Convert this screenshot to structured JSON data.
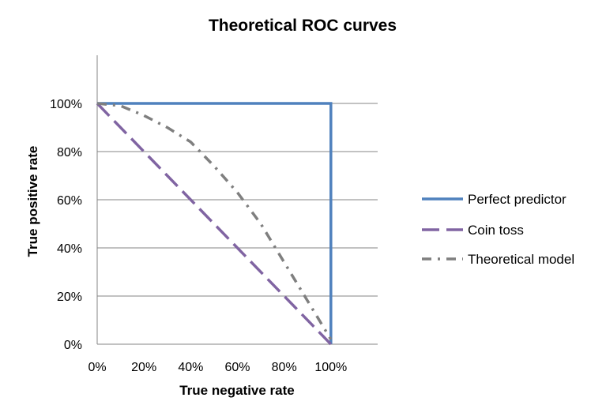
{
  "chart_data": {
    "type": "line",
    "title": "Theoretical ROC curves",
    "xlabel": "True negative rate",
    "ylabel": "True positive rate",
    "xlim": [
      0,
      1.2
    ],
    "ylim": [
      0,
      1.2
    ],
    "x_ticks": [
      0,
      0.2,
      0.4,
      0.6,
      0.8,
      1.0
    ],
    "x_tick_labels": [
      "0%",
      "20%",
      "40%",
      "60%",
      "80%",
      "100%"
    ],
    "y_ticks": [
      0,
      0.2,
      0.4,
      0.6,
      0.8,
      1.0
    ],
    "y_tick_labels": [
      "0%",
      "20%",
      "40%",
      "60%",
      "80%",
      "100%"
    ],
    "grid": "horizontal",
    "legend_position": "right",
    "series": [
      {
        "name": "Perfect predictor",
        "color": "#4F81BD",
        "dash": "solid",
        "x": [
          0,
          1.0,
          1.0
        ],
        "y": [
          1.0,
          1.0,
          0
        ]
      },
      {
        "name": "Coin toss",
        "color": "#8064A2",
        "dash": "long-dash",
        "x": [
          0,
          1.0
        ],
        "y": [
          1.0,
          0
        ]
      },
      {
        "name": "Theoretical model",
        "color": "#7F7F7F",
        "dash": "dash-dot",
        "x": [
          0,
          0.1,
          0.2,
          0.3,
          0.4,
          0.5,
          0.6,
          0.7,
          0.8,
          0.9,
          1.0
        ],
        "y": [
          1.0,
          0.99,
          0.95,
          0.9,
          0.84,
          0.74,
          0.63,
          0.5,
          0.34,
          0.18,
          0.02
        ]
      }
    ]
  }
}
